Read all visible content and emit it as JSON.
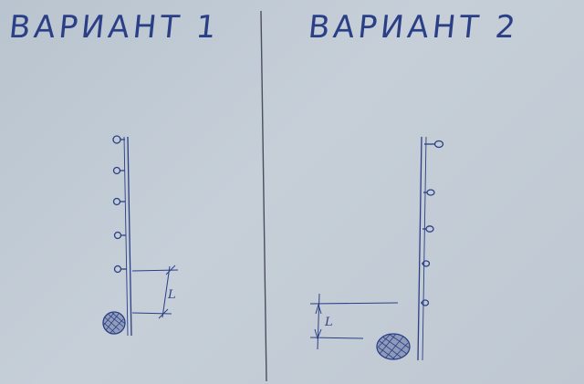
{
  "variant_left": {
    "title": "ВАРИАНТ 1",
    "dimension_label": "L"
  },
  "variant_right": {
    "title": "ВАРИАНТ 2",
    "dimension_label": "L"
  },
  "colors": {
    "ink": "#2b3f86",
    "pencil_line": "#5a5f6e",
    "paper": "#c2cbd5"
  }
}
